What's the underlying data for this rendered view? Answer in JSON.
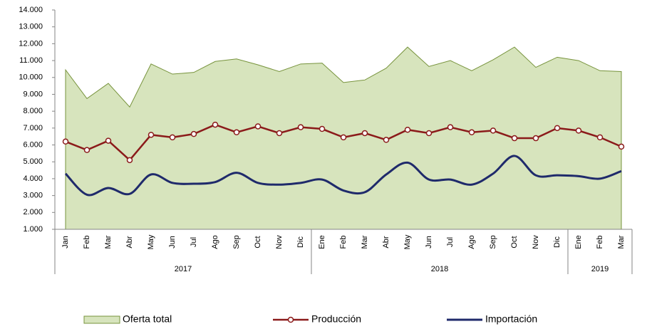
{
  "chart_data": {
    "type": "line",
    "year_groups": [
      {
        "name": "2017",
        "categories": [
          "Jan",
          "Feb",
          "Mar",
          "Abr",
          "May",
          "Jun",
          "Jul",
          "Ago",
          "Sep",
          "Oct",
          "Nov",
          "Dic"
        ]
      },
      {
        "name": "2018",
        "categories": [
          "Ene",
          "Feb",
          "Mar",
          "Abr",
          "May",
          "Jun",
          "Jul",
          "Ago",
          "Sep",
          "Oct",
          "Nov",
          "Dic"
        ]
      },
      {
        "name": "2019",
        "categories": [
          "Ene",
          "Feb",
          "Mar"
        ]
      }
    ],
    "series": [
      {
        "name": "Oferta total",
        "kind": "area",
        "color": "#d7e4bd",
        "stroke": "#77933c",
        "values": [
          10450,
          8750,
          9650,
          8250,
          10800,
          10200,
          10300,
          10950,
          11100,
          10750,
          10350,
          10800,
          10850,
          9700,
          9850,
          10550,
          11800,
          10650,
          11000,
          10400,
          11050,
          11800,
          10600,
          11200,
          11000,
          10400,
          10350
        ]
      },
      {
        "name": "Producción",
        "kind": "markers",
        "color": "#8b1a1a",
        "values": [
          6200,
          5700,
          6250,
          5100,
          6600,
          6450,
          6650,
          7200,
          6750,
          7100,
          6700,
          7050,
          6950,
          6450,
          6700,
          6300,
          6900,
          6700,
          7050,
          6750,
          6850,
          6400,
          6400,
          7000,
          6850,
          6450,
          5900
        ]
      },
      {
        "name": "Importación",
        "kind": "smooth",
        "color": "#1f2a6b",
        "values": [
          4300,
          3050,
          3450,
          3100,
          4250,
          3750,
          3700,
          3800,
          4350,
          3750,
          3650,
          3750,
          3950,
          3300,
          3200,
          4250,
          4950,
          3950,
          3950,
          3650,
          4300,
          5350,
          4200,
          4200,
          4150,
          4000,
          4450
        ]
      }
    ],
    "ylim": [
      1000,
      14000
    ],
    "yticks": [
      {
        "value": 1000,
        "label": "1.000"
      },
      {
        "value": 2000,
        "label": "2.000"
      },
      {
        "value": 3000,
        "label": "3.000"
      },
      {
        "value": 4000,
        "label": "4.000"
      },
      {
        "value": 5000,
        "label": "5.000"
      },
      {
        "value": 6000,
        "label": "6.000"
      },
      {
        "value": 7000,
        "label": "7.000"
      },
      {
        "value": 8000,
        "label": "8.000"
      },
      {
        "value": 9000,
        "label": "9.000"
      },
      {
        "value": 10000,
        "label": "10.000"
      },
      {
        "value": 11000,
        "label": "11.000"
      },
      {
        "value": 12000,
        "label": "12.000"
      },
      {
        "value": 13000,
        "label": "13.000"
      },
      {
        "value": 14000,
        "label": "14.000"
      }
    ],
    "grid": false,
    "legend": "bottom"
  }
}
